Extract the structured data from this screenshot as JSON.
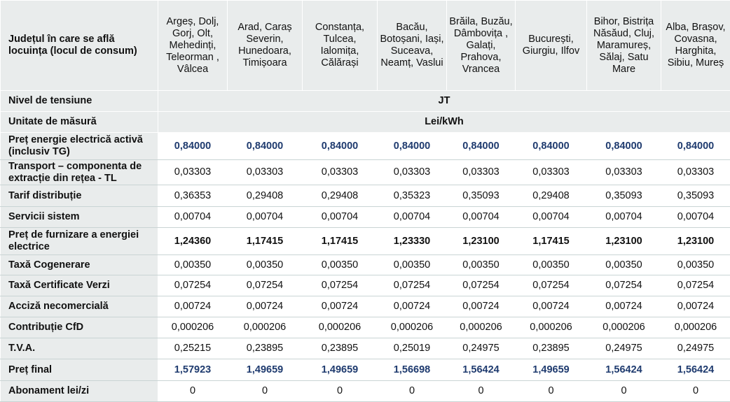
{
  "header": {
    "label": "Județul în care se află locuința (locul de consum)",
    "regions": [
      "Argeș, Dolj, Gorj, Olt, Mehedinți, Teleorman , Vâlcea",
      "Arad, Caraș Severin, Hunedoara, Timișoara",
      "Constanța, Tulcea, Ialomița, Călărași",
      "Bacău, Botoșani, Iași, Suceava, Neamț, Vaslui",
      "Brăila, Buzău, Dâmbovița , Galați, Prahova, Vrancea",
      "București, Giurgiu, Ilfov",
      "Bihor, Bistrița Năsăud, Cluj, Maramureș, Sălaj, Satu Mare",
      "Alba, Brașov, Covasna, Harghita, Sibiu, Mureș"
    ]
  },
  "voltage": {
    "label": "Nivel de tensiune",
    "value": "JT"
  },
  "unit": {
    "label": "Unitate de măsură",
    "value": "Lei/kWh"
  },
  "rows": [
    {
      "label": "Preț energie electrică activă (inclusiv TG)",
      "values": [
        "0,84000",
        "0,84000",
        "0,84000",
        "0,84000",
        "0,84000",
        "0,84000",
        "0,84000",
        "0,84000"
      ]
    },
    {
      "label": "Transport – componenta de extracție din rețea - TL",
      "values": [
        "0,03303",
        "0,03303",
        "0,03303",
        "0,03303",
        "0,03303",
        "0,03303",
        "0,03303",
        "0,03303"
      ]
    },
    {
      "label": "Tarif distribuție",
      "values": [
        "0,36353",
        "0,29408",
        "0,29408",
        "0,35323",
        "0,35093",
        "0,29408",
        "0,35093",
        "0,35093"
      ]
    },
    {
      "label": "Servicii sistem",
      "values": [
        "0,00704",
        "0,00704",
        "0,00704",
        "0,00704",
        "0,00704",
        "0,00704",
        "0,00704",
        "0,00704"
      ]
    },
    {
      "label": "Preț de furnizare a energiei electrice",
      "values": [
        "1,24360",
        "1,17415",
        "1,17415",
        "1,23330",
        "1,23100",
        "1,17415",
        "1,23100",
        "1,23100"
      ]
    },
    {
      "label": "Taxă Cogenerare",
      "values": [
        "0,00350",
        "0,00350",
        "0,00350",
        "0,00350",
        "0,00350",
        "0,00350",
        "0,00350",
        "0,00350"
      ]
    },
    {
      "label": "Taxă Certificate Verzi",
      "values": [
        "0,07254",
        "0,07254",
        "0,07254",
        "0,07254",
        "0,07254",
        "0,07254",
        "0,07254",
        "0,07254"
      ]
    },
    {
      "label": "Acciză necomercială",
      "values": [
        "0,00724",
        "0,00724",
        "0,00724",
        "0,00724",
        "0,00724",
        "0,00724",
        "0,00724",
        "0,00724"
      ]
    },
    {
      "label": "Contribuție CfD",
      "values": [
        "0,000206",
        "0,000206",
        "0,000206",
        "0,000206",
        "0,000206",
        "0,000206",
        "0,000206",
        "0,000206"
      ]
    },
    {
      "label": "T.V.A.",
      "values": [
        "0,25215",
        "0,23895",
        "0,23895",
        "0,25019",
        "0,24975",
        "0,23895",
        "0,24975",
        "0,24975"
      ]
    },
    {
      "label": "Preț final",
      "values": [
        "1,57923",
        "1,49659",
        "1,49659",
        "1,56698",
        "1,56424",
        "1,49659",
        "1,56424",
        "1,56424"
      ]
    },
    {
      "label": "Abonament lei/zi",
      "values": [
        "0",
        "0",
        "0",
        "0",
        "0",
        "0",
        "0",
        "0"
      ]
    }
  ],
  "colors": {
    "header_bg": "#e9ecec",
    "highlight_text": "#1f3b6f",
    "grid_line": "#c9d4d4"
  }
}
